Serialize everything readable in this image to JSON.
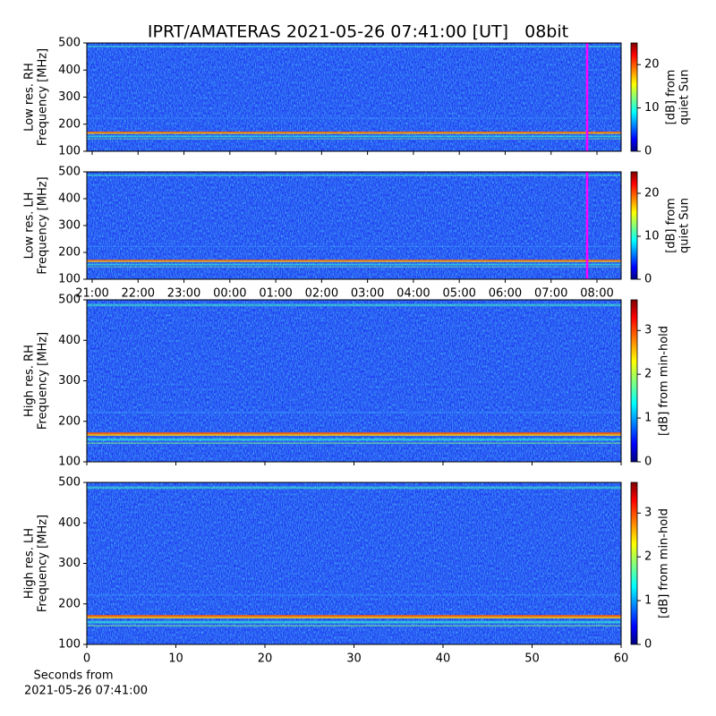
{
  "title": "IPRT/AMATERAS 2021-05-26 07:41:00 [UT]   08bit",
  "chart_data": [
    {
      "type": "heatmap",
      "ylabel": [
        "Low res. RH",
        "Frequency [MHz]"
      ],
      "ylim": [
        100,
        500
      ],
      "yticks": [
        100,
        200,
        300,
        400,
        500
      ],
      "colorbar": {
        "label": [
          "[dB] from",
          "quiet Sun"
        ],
        "lim": [
          0,
          25
        ],
        "ticks": [
          0,
          10,
          20
        ]
      }
    },
    {
      "type": "heatmap",
      "ylabel": [
        "Low res. LH",
        "Frequency [MHz]"
      ],
      "ylim": [
        100,
        500
      ],
      "yticks": [
        100,
        200,
        300,
        400,
        500
      ],
      "xticks": [
        "21:00",
        "22:00",
        "23:00",
        "00:00",
        "01:00",
        "02:00",
        "03:00",
        "04:00",
        "05:00",
        "06:00",
        "07:00",
        "08:00"
      ],
      "colorbar": {
        "label": [
          "[dB] from",
          "quiet Sun"
        ],
        "lim": [
          0,
          25
        ],
        "ticks": [
          0,
          10,
          20
        ]
      }
    },
    {
      "type": "heatmap",
      "ylabel": [
        "High res. RH",
        "Frequency [MHz]"
      ],
      "ylim": [
        100,
        500
      ],
      "yticks": [
        100,
        200,
        300,
        400,
        500
      ],
      "colorbar": {
        "label": [
          "[dB] from min-hold"
        ],
        "lim": [
          0,
          3.7
        ],
        "ticks": [
          0,
          1,
          2,
          3
        ]
      }
    },
    {
      "type": "heatmap",
      "ylabel": [
        "High res. LH",
        "Frequency [MHz]"
      ],
      "ylim": [
        100,
        500
      ],
      "yticks": [
        100,
        200,
        300,
        400,
        500
      ],
      "xlabel": [
        "Seconds from",
        "2021-05-26 07:41:00"
      ],
      "xlim": [
        0,
        60
      ],
      "xticks": [
        0,
        10,
        20,
        30,
        40,
        50,
        60
      ],
      "colorbar": {
        "label": [
          "[dB] from min-hold"
        ],
        "lim": [
          0,
          3.7
        ],
        "ticks": [
          0,
          1,
          2,
          3
        ]
      }
    }
  ]
}
